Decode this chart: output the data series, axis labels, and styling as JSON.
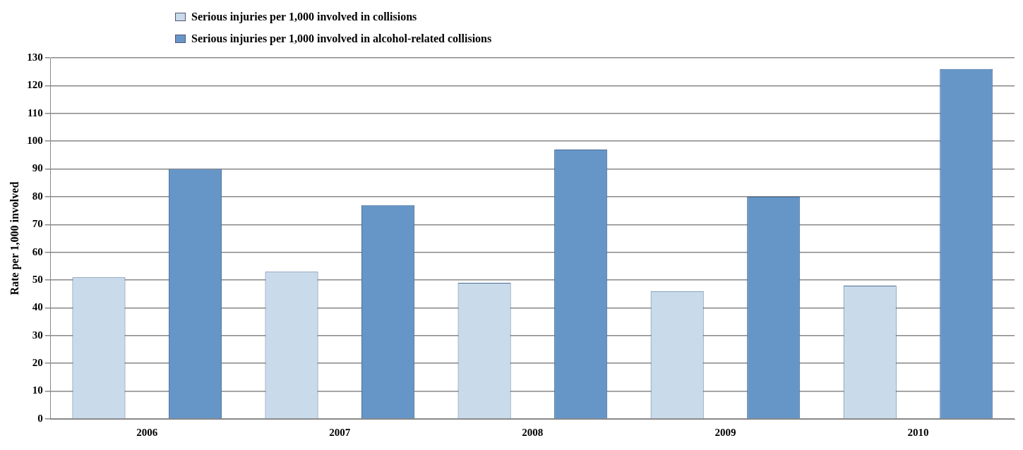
{
  "chart_data": {
    "type": "bar",
    "ylabel": "Rate per 1,000 involved",
    "categories": [
      "2006",
      "2007",
      "2008",
      "2009",
      "2010"
    ],
    "series": [
      {
        "name": "Serious injuries per 1,000 involved in collisions",
        "color": "#c9daea",
        "values": [
          51,
          53,
          49,
          46,
          48
        ]
      },
      {
        "name": "Serious injuries per 1,000 involved in alcohol-related collisions",
        "color": "#6696c8",
        "values": [
          90,
          77,
          97,
          80,
          126
        ]
      }
    ],
    "ylim": [
      0,
      130
    ],
    "yticks": [
      0,
      10,
      20,
      30,
      40,
      50,
      60,
      70,
      80,
      90,
      100,
      110,
      120,
      130
    ],
    "grid": "y",
    "legend": "top"
  }
}
